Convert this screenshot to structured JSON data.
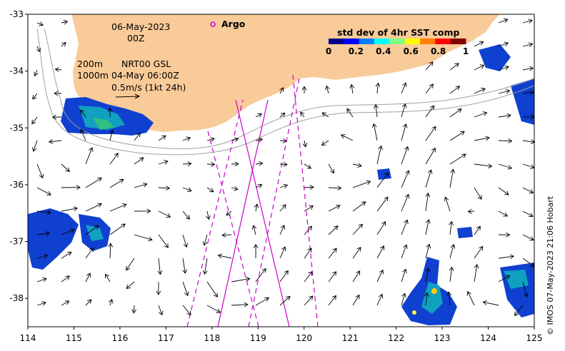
{
  "map": {
    "date_line": "06-May-2023",
    "time_line": "00Z",
    "contours_label_a": "200m",
    "contours_label_b": "1000m",
    "product_label": "NRT00 GSL",
    "product_time": "04-May 06:00Z",
    "scale_label": "0.5m/s (1kt 24h)",
    "argo_label": "Argo",
    "credit": "© IMOS 07-May-2023 21:06 Hobart",
    "land_color": "#f9cb99",
    "track_color": "#cc00cc",
    "lon_range": [
      114,
      125
    ],
    "lat_range": [
      -38.5,
      -33
    ],
    "lon_ticks": [
      "114",
      "115",
      "116",
      "117",
      "118",
      "119",
      "120",
      "121",
      "122",
      "123",
      "124",
      "125"
    ],
    "lat_ticks": [
      "-33",
      "-34",
      "-35",
      "-36",
      "-37",
      "-38"
    ]
  },
  "colorbar": {
    "title": "std dev of 4hr SST comp",
    "ticks": [
      "0",
      "0.2",
      "0.4",
      "0.6",
      "0.8",
      "1"
    ],
    "colors": [
      "#00008f",
      "#0000ff",
      "#0080ff",
      "#00ffff",
      "#80ff80",
      "#ffff00",
      "#ff8000",
      "#ff0000",
      "#800000"
    ]
  }
}
